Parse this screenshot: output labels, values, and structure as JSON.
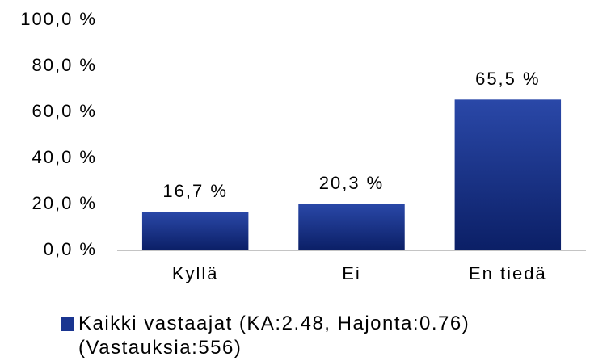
{
  "chart_data": {
    "type": "bar",
    "categories": [
      "Kyllä",
      "Ei",
      "En tiedä"
    ],
    "series": [
      {
        "name": "Kaikki vastaajat (KA:2.48, Hajonta:0.76) (Vastauksia:556)",
        "color": "#1a3590",
        "values": [
          16.7,
          20.3,
          65.5
        ],
        "value_labels": [
          "16,7 %",
          "20,3 %",
          "65,5 %"
        ]
      }
    ],
    "ylim": [
      0,
      100
    ],
    "yticks": [
      {
        "value": 0,
        "label": "0,0 %"
      },
      {
        "value": 20,
        "label": "20,0 %"
      },
      {
        "value": 40,
        "label": "40,0 %"
      },
      {
        "value": 60,
        "label": "60,0 %"
      },
      {
        "value": 80,
        "label": "80,0 %"
      },
      {
        "value": 100,
        "label": "100,0 %"
      }
    ],
    "grid": false,
    "legend": "bottom"
  }
}
